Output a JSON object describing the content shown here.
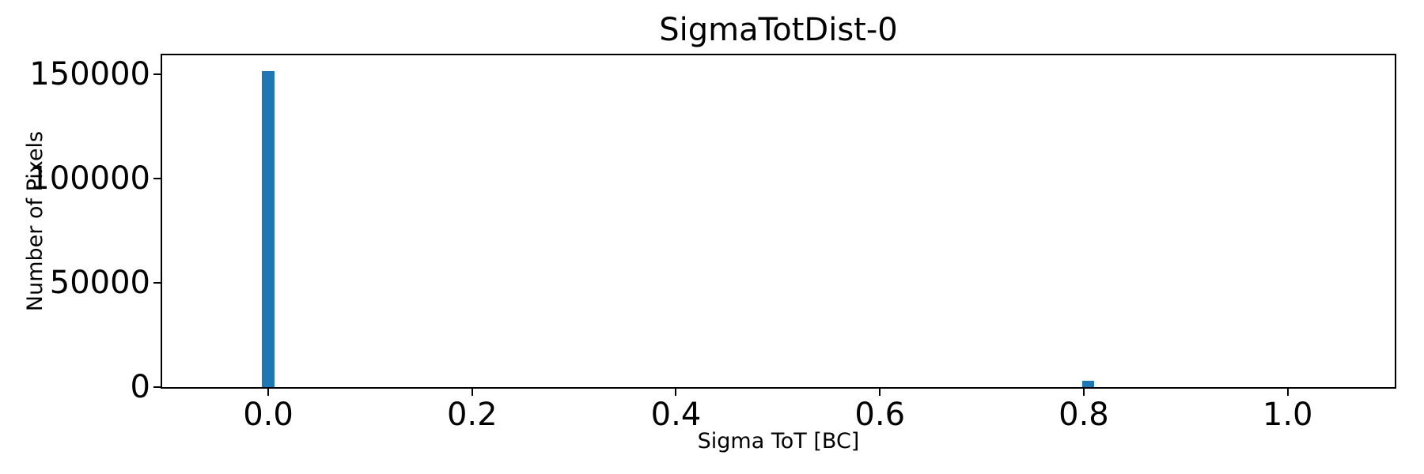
{
  "chart_data": {
    "type": "bar",
    "title": "SigmaTotDist-0",
    "xlabel": "Sigma ToT [BC]",
    "ylabel": "Number of Pixels",
    "bar_color": "#1f77b4",
    "axis_color": "#000000",
    "background_color": "#ffffff",
    "grid": false,
    "legend": null,
    "xlim": [
      -0.104,
      1.105
    ],
    "ylim": [
      0,
      159000
    ],
    "xticks": [
      0.0,
      0.2,
      0.4,
      0.6,
      0.8,
      1.0
    ],
    "xtick_labels": [
      "0.0",
      "0.2",
      "0.4",
      "0.6",
      "0.8",
      "1.0"
    ],
    "yticks": [
      0,
      50000,
      100000,
      150000
    ],
    "ytick_labels": [
      "0",
      "50000",
      "100000",
      "150000"
    ],
    "bin_width": 0.0118,
    "bars": [
      {
        "x": 0.0,
        "count": 151400
      },
      {
        "x": 0.804,
        "count": 2900
      }
    ]
  }
}
